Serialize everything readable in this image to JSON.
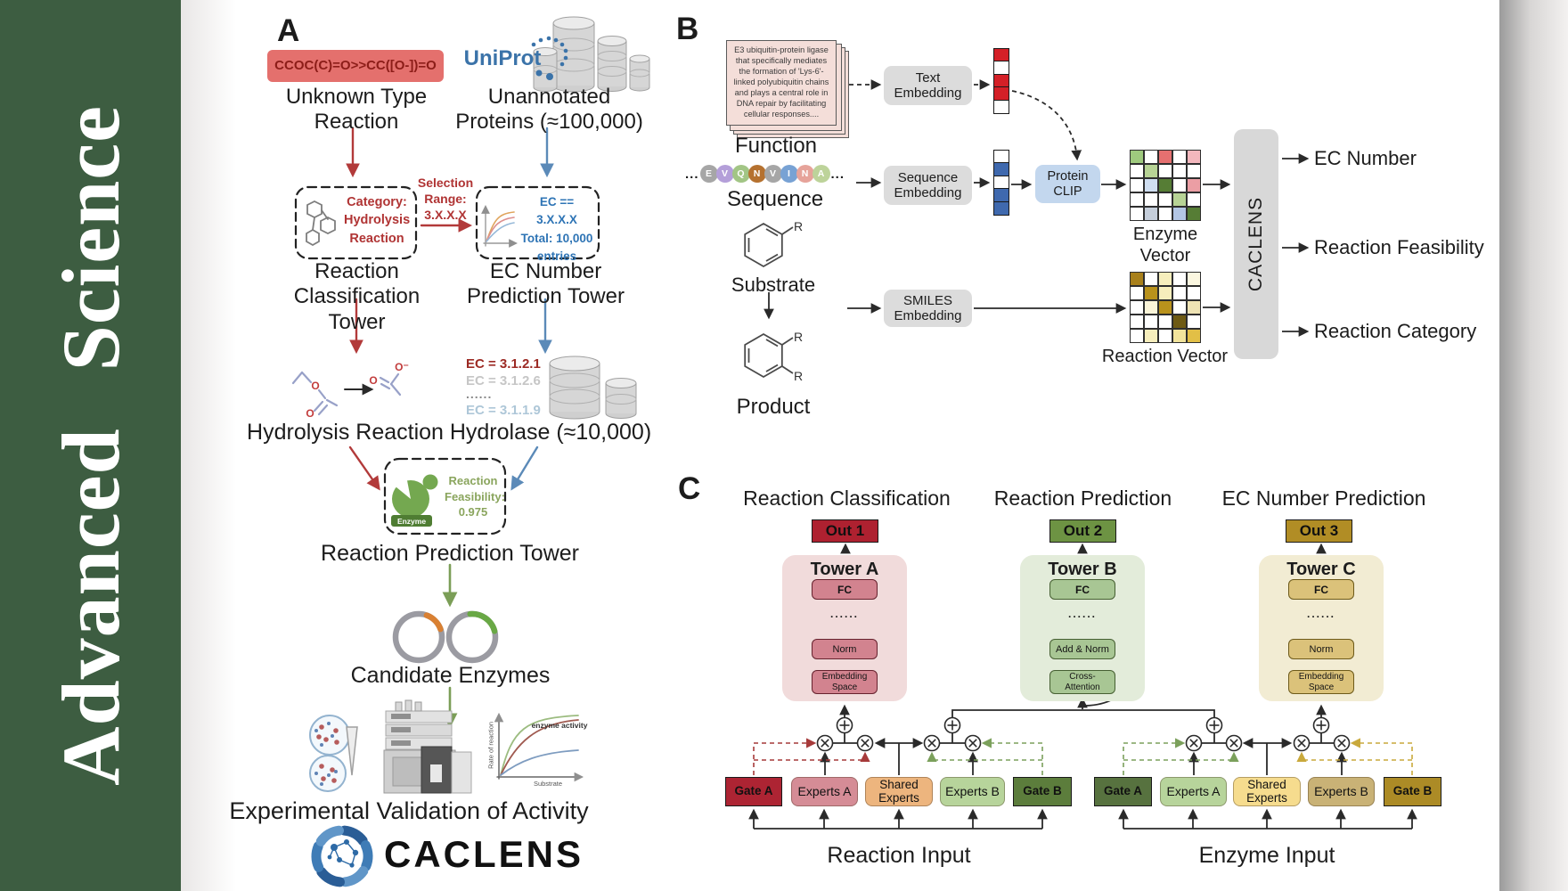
{
  "journal": {
    "name": "Advanced Science"
  },
  "colors": {
    "sidebar_green": "#3d5d41",
    "red_accent": "#b23a3a",
    "blue_accent": "#5b8ab8",
    "olive_arrow": "#7b9e57",
    "uniprot_blue": "#3b73a9",
    "smiles_bg": "#e4706d",
    "enzyme_green": "#74a850",
    "tower_a_fill": "#f1dbdb",
    "tower_b_fill": "#e3ecda",
    "tower_c_fill": "#f2ecd3",
    "out1": "#ae2130",
    "out2": "#6d9343",
    "out3": "#b18d25",
    "gate_a_reaction": "#ad2433",
    "experts_a_reaction": "#d58c96",
    "shared_reaction": "#edb57e",
    "experts_b_reaction": "#b7d49b",
    "gate_b_reaction": "#5c7d3c",
    "gate_a_enzyme": "#57723f",
    "experts_a_enzyme": "#b7d49b",
    "shared_enzyme": "#f6dc8e",
    "experts_b_enzyme": "#c9b276",
    "gate_b_enzyme": "#ac8b26",
    "protein_clip": "#c3d7ee",
    "embedding_gray": "#dcdcdc",
    "caclens_gray": "#d8d8d8"
  },
  "panelA": {
    "label": "A",
    "smiles": "CCOC(C)=O>>CC([O-])=O",
    "unknown_reaction": "Unknown Type\nReaction",
    "uniprot": "UniProt",
    "unannotated": "Unannotated\nProteins (≈100,000)",
    "category_box": "Category:\nHydrolysis\nReaction",
    "selection": "Selection\nRange:\n3.X.X.X",
    "ec_box": "EC == 3.X.X.X\nTotal: 10,000\nentries",
    "classification_tower": "Reaction\nClassification Tower",
    "ec_tower": "EC Number\nPrediction Tower",
    "ec_list": [
      "EC = 3.1.2.1",
      "EC = 3.1.2.6",
      "......",
      "EC = 3.1.1.9"
    ],
    "hydrolysis": "Hydrolysis Reaction",
    "hydrolase": "Hydrolase (≈10,000)",
    "enzyme_label": "Enzyme",
    "feasibility": "Reaction\nFeasibility:\n0.975",
    "prediction_tower": "Reaction Prediction Tower",
    "candidate": "Candidate Enzymes",
    "validation": "Experimental Validation of Activity",
    "wordmark": "CACLENS",
    "plot": {
      "annotation": "enzyme activity",
      "ylabel": "Rate of reaction",
      "xlabel": "Substrate"
    }
  },
  "panelB": {
    "label": "B",
    "function_card": "E3 ubiquitin-protein ligase that specifically mediates the formation of 'Lys-6'-linked polyubiquitin chains and plays a central role in DNA repair by facilitating cellular responses....",
    "function_label": "Function",
    "ellipsis": "...",
    "sequence_circles": [
      {
        "letter": "E",
        "color": "#a6a6a6"
      },
      {
        "letter": "V",
        "color": "#b49fd9"
      },
      {
        "letter": "Q",
        "color": "#a2c585"
      },
      {
        "letter": "N",
        "color": "#b5712f"
      },
      {
        "letter": "V",
        "color": "#a6a6a6"
      },
      {
        "letter": "I",
        "color": "#78a2d4"
      },
      {
        "letter": "N",
        "color": "#e6a39a"
      },
      {
        "letter": "A",
        "color": "#bdd39a"
      }
    ],
    "sequence_label": "Sequence",
    "substrate_label": "Substrate",
    "product_label": "Product",
    "r_group": "R",
    "text_embedding": "Text\nEmbedding",
    "sequence_embedding": "Sequence\nEmbedding",
    "smiles_embedding": "SMILES\nEmbedding",
    "protein_clip": "Protein\nCLIP",
    "text_vector": [
      "#d42027",
      "#ffffff",
      "#d42027",
      "#d42027",
      "#ffffff"
    ],
    "sequence_vector": [
      "#ffffff",
      "#3f69ae",
      "#ffffff",
      "#3f69ae",
      "#3f69ae"
    ],
    "enzyme_grid": [
      [
        "#9fca7e",
        "#ffffff",
        "#e57070",
        "#ffffff",
        "#f3b7bd"
      ],
      [
        "#ffffff",
        "#b7d395",
        "#ffffff",
        "#ffffff",
        "#ffffff"
      ],
      [
        "#ffffff",
        "#cfdef1",
        "#567d35",
        "#ffffff",
        "#eb9ea4"
      ],
      [
        "#ffffff",
        "#ffffff",
        "#ffffff",
        "#b7d395",
        "#ffffff"
      ],
      [
        "#ffffff",
        "#c5cedb",
        "#ffffff",
        "#b3c6e4",
        "#567d35"
      ]
    ],
    "reaction_grid": [
      [
        "#a8801b",
        "#ffffff",
        "#f6eebc",
        "#ffffff",
        "#fbf7e0"
      ],
      [
        "#ffffff",
        "#b9921c",
        "#f6eebc",
        "#ffffff",
        "#ffffff"
      ],
      [
        "#ffffff",
        "#faf4d8",
        "#b9921c",
        "#ffffff",
        "#eee3b4"
      ],
      [
        "#ffffff",
        "#ffffff",
        "#ffffff",
        "#6e5a13",
        "#ffffff"
      ],
      [
        "#ffffff",
        "#f6eebc",
        "#ffffff",
        "#f2e49c",
        "#e2bf46"
      ]
    ],
    "enzyme_vector_label": "Enzyme Vector",
    "reaction_vector_label": "Reaction Vector",
    "caclens": "CACLENS",
    "outputs": [
      "EC Number",
      "Reaction Feasibility",
      "Reaction Category"
    ]
  },
  "panelC": {
    "label": "C",
    "headers": [
      "Reaction Classification",
      "Reaction Prediction",
      "EC Number Prediction"
    ],
    "outs": [
      "Out 1",
      "Out 2",
      "Out 3"
    ],
    "towers": [
      {
        "name": "Tower A",
        "layers": [
          "Embedding\nSpace",
          "Norm",
          "......",
          "FC"
        ]
      },
      {
        "name": "Tower B",
        "layers": [
          "Cross-\nAttention",
          "Add & Norm",
          "......",
          "FC"
        ]
      },
      {
        "name": "Tower C",
        "layers": [
          "Embedding\nSpace",
          "Norm",
          "......",
          "FC"
        ]
      }
    ],
    "moe_reaction": {
      "boxes": [
        "Gate A",
        "Experts A",
        "Shared\nExperts",
        "Experts B",
        "Gate B"
      ],
      "label": "Reaction Input"
    },
    "moe_enzyme": {
      "boxes": [
        "Gate A",
        "Experts A",
        "Shared\nExperts",
        "Experts B",
        "Gate B"
      ],
      "label": "Enzyme Input"
    }
  }
}
